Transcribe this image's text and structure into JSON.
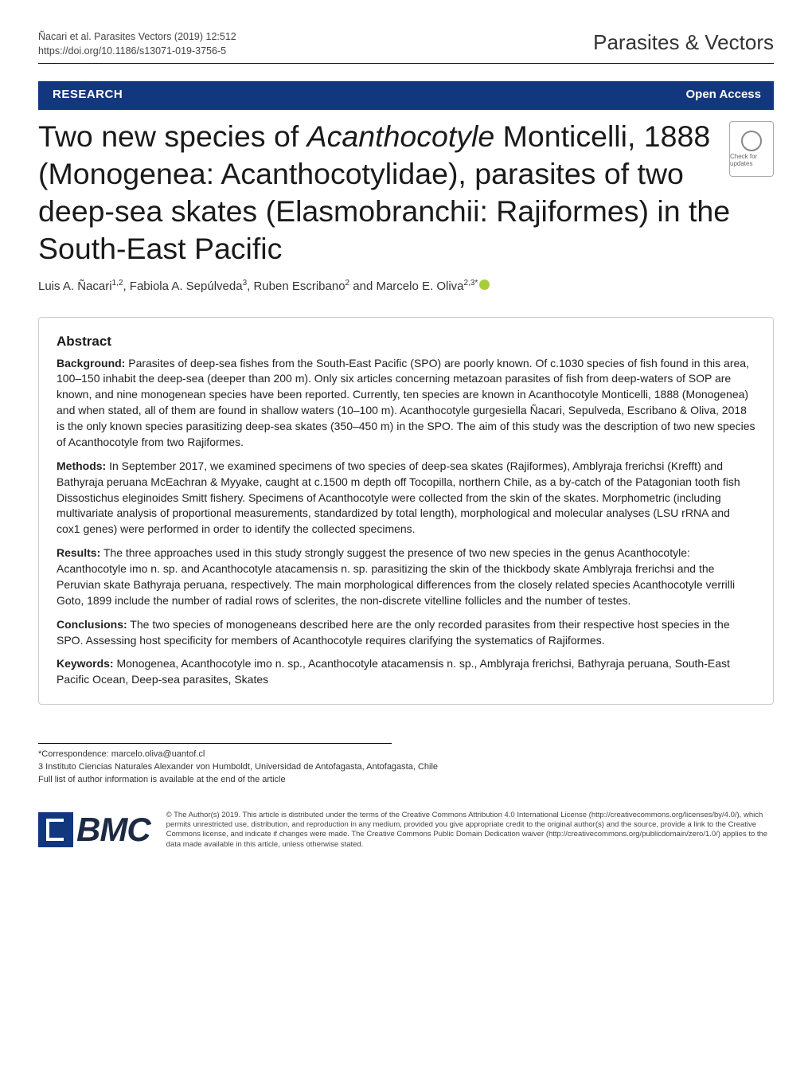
{
  "header": {
    "citation_line1": "Ñacari et al. Parasites Vectors        (2019) 12:512",
    "citation_line2": "https://doi.org/10.1186/s13071-019-3756-5",
    "journal": "Parasites & Vectors"
  },
  "badges": {
    "research": "RESEARCH",
    "open_access": "Open Access",
    "crossmark_label": "Check for updates"
  },
  "title": {
    "html_parts": [
      "Two new species of ",
      " Monticelli, 1888 (Monogenea: Acanthocotylidae), parasites of two deep-sea skates (Elasmobranchii: Rajiformes) in the South-East Pacific"
    ],
    "italic_genus": "Acanthocotyle"
  },
  "authors": {
    "list": "Luis A. Ñacari",
    "sup1": "1,2",
    "a2": ", Fabiola A. Sepúlveda",
    "sup2": "3",
    "a3": ", Ruben Escribano",
    "sup3": "2",
    "a4": " and Marcelo E. Oliva",
    "sup4": "2,3*"
  },
  "abstract": {
    "heading": "Abstract",
    "background_label": "Background:",
    "background_text": "  Parasites of deep-sea fishes from the South-East Pacific (SPO) are poorly known. Of c.1030 species of fish found in this area, 100–150 inhabit the deep-sea (deeper than 200 m). Only six articles concerning metazoan parasites of fish from deep-waters of SOP are known, and nine monogenean species have been reported. Currently, ten species are known in Acanthocotyle Monticelli, 1888 (Monogenea) and when stated, all of them are found in shallow waters (10–100 m). Acanthocotyle gurgesiella Ñacari, Sepulveda, Escribano & Oliva, 2018 is the only known species parasitizing deep-sea skates (350–450 m) in the SPO. The aim of this study was the description of two new species of Acanthocotyle from two Rajiformes.",
    "methods_label": "Methods:",
    "methods_text": "  In September 2017, we examined specimens of two species of deep-sea skates (Rajiformes), Amblyraja frerichsi (Krefft) and Bathyraja peruana McEachran & Myyake, caught at c.1500 m depth off Tocopilla, northern Chile, as a by-catch of the Patagonian tooth fish Dissostichus eleginoides Smitt fishery. Specimens of Acanthocotyle were collected from the skin of the skates. Morphometric (including multivariate analysis of proportional measurements, standardized by total length), morphological and molecular analyses (LSU rRNA and cox1 genes) were performed in order to identify the collected specimens.",
    "results_label": "Results:",
    "results_text": "  The three approaches used in this study strongly suggest the presence of two new species in the genus Acanthocotyle: Acanthocotyle imo n. sp. and Acanthocotyle atacamensis n. sp. parasitizing the skin of the thickbody skate Amblyraja frerichsi and the Peruvian skate Bathyraja peruana, respectively. The main morphological differences from the closely related species Acanthocotyle verrilli Goto, 1899 include the number of radial rows of sclerites, the non-discrete vitelline follicles and the number of testes.",
    "conclusions_label": "Conclusions:",
    "conclusions_text": "  The two species of monogeneans described here are the only recorded parasites from their respective host species in the SPO. Assessing host specificity for members of Acanthocotyle requires clarifying the systematics of Rajiformes.",
    "keywords_label": "Keywords:",
    "keywords_text": "  Monogenea, Acanthocotyle imo n. sp., Acanthocotyle atacamensis n. sp., Amblyraja frerichsi, Bathyraja peruana, South-East Pacific Ocean, Deep-sea parasites, Skates"
  },
  "footer": {
    "correspondence": "*Correspondence:  marcelo.oliva@uantof.cl",
    "affiliation3": "3 Instituto Ciencias Naturales Alexander von Humboldt, Universidad de Antofagasta, Antofagasta, Chile",
    "full_list": "Full list of author information is available at the end of the article",
    "bmc": "BMC",
    "license": "© The Author(s) 2019. This article is distributed under the terms of the Creative Commons Attribution 4.0 International License (http://creativecommons.org/licenses/by/4.0/), which permits unrestricted use, distribution, and reproduction in any medium, provided you give appropriate credit to the original author(s) and the source, provide a link to the Creative Commons license, and indicate if changes were made. The Creative Commons Public Domain Dedication waiver (http://creativecommons.org/publicdomain/zero/1.0/) applies to the data made available in this article, unless otherwise stated."
  },
  "colors": {
    "badge_bg": "#13377e",
    "badge_text": "#ffffff",
    "text_primary": "#1a1a1a",
    "border_gray": "#cccccc",
    "link": "#0b61a4",
    "orcid": "#a6ce39"
  }
}
